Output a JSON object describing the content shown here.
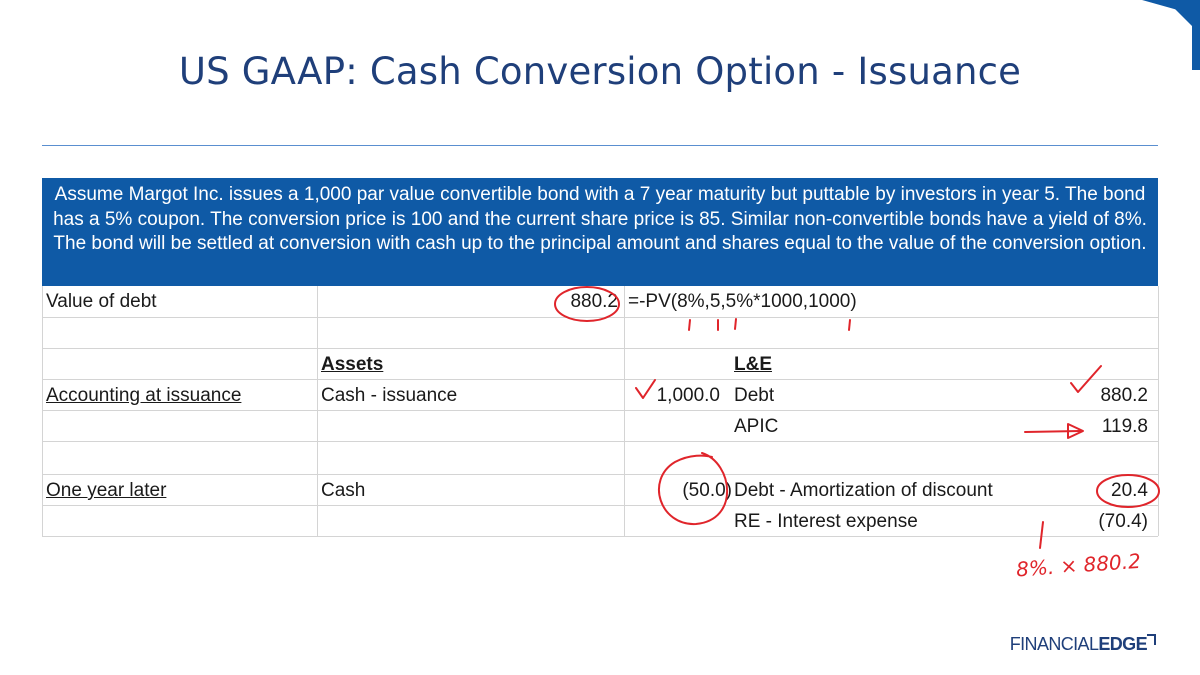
{
  "slide": {
    "title": "US GAAP: Cash Conversion Option - Issuance",
    "banner_text": "Assume Margot Inc. issues a 1,000 par value convertible bond with a 7 year maturity but puttable by investors in year 5. The bond has a 5% coupon. The conversion price is 100 and the current share price is 85. Similar non-convertible bonds have a yield of 8%. The bond will be settled at conversion with cash up to the principal amount and shares equal to the value of the conversion option."
  },
  "table": {
    "debt_row": {
      "label": "Value of debt",
      "value": "880.2",
      "formula": "=-PV(8%,5,5%*1000,1000)"
    },
    "headers": {
      "assets": "Assets",
      "le": "L&E"
    },
    "issuance": {
      "label": "Accounting at issuance",
      "asset": "Cash - issuance",
      "asset_value": "1,000.0",
      "items": [
        {
          "name": "Debt",
          "value": "880.2"
        },
        {
          "name": "APIC",
          "value": "119.8"
        }
      ]
    },
    "one_year_later": {
      "label": "One year later",
      "asset": "Cash",
      "asset_value": "(50.0)",
      "items": [
        {
          "name": "Debt - Amortization of discount",
          "value": "20.4"
        },
        {
          "name": "RE - Interest expense",
          "value": "(70.4)"
        }
      ]
    }
  },
  "handwriting": {
    "note": "8%. × 880.2"
  },
  "brand": {
    "part1": "FINANCIAL",
    "part2": "EDGE"
  },
  "colors": {
    "title": "#1f3f7a",
    "banner": "#0f5aa6",
    "annotation": "#e0252b",
    "corner": "#0f5aa6"
  }
}
